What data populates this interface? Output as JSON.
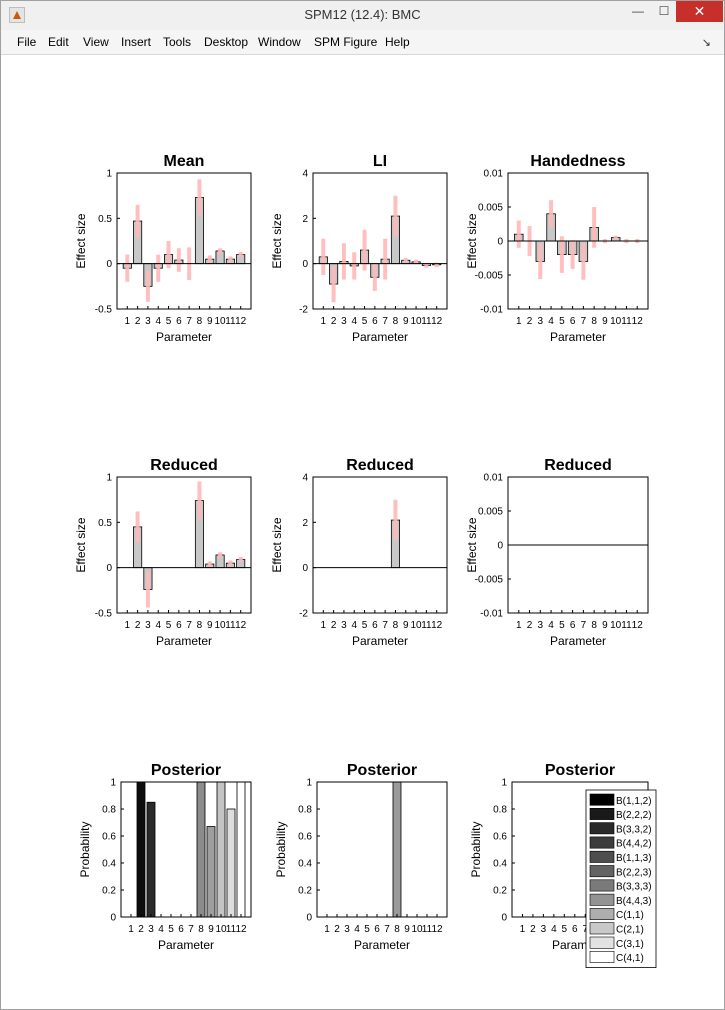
{
  "window": {
    "title": "SPM12 (12.4): BMC",
    "minimize_glyph": "—",
    "maximize_glyph": "☐",
    "close_glyph": "✕",
    "icon": "matlab-figure-icon"
  },
  "menu": {
    "items": [
      "File",
      "Edit",
      "View",
      "Insert",
      "Tools",
      "Desktop",
      "Window",
      "SPM Figure",
      "Help"
    ],
    "dock_glyph": "↘"
  },
  "colors": {
    "bar": "#c8c8c8",
    "error": "#ffb8b8",
    "axis": "#000000"
  },
  "chart_data": [
    {
      "type": "bar",
      "title": "Mean",
      "xlabel": "Parameter",
      "ylabel": "Effect size",
      "categories": [
        "1",
        "2",
        "3",
        "4",
        "5",
        "6",
        "7",
        "8",
        "9",
        "10",
        "11",
        "12"
      ],
      "ylim": [
        -0.5,
        1
      ],
      "yticks": [
        -0.5,
        0,
        0.5,
        1
      ],
      "ytick_labels": [
        "-0.5",
        "0",
        "0.5",
        "1"
      ],
      "values": [
        -0.05,
        0.47,
        -0.25,
        -0.05,
        0.1,
        0.04,
        0.0,
        0.73,
        0.05,
        0.14,
        0.05,
        0.1
      ],
      "errors": [
        0.15,
        0.18,
        0.17,
        0.15,
        0.15,
        0.13,
        0.18,
        0.2,
        0.04,
        0.03,
        0.03,
        0.03
      ]
    },
    {
      "type": "bar",
      "title": "LI",
      "xlabel": "Parameter",
      "ylabel": "Effect size",
      "categories": [
        "1",
        "2",
        "3",
        "4",
        "5",
        "6",
        "7",
        "8",
        "9",
        "10",
        "11",
        "12"
      ],
      "ylim": [
        -2,
        4
      ],
      "yticks": [
        -2,
        0,
        2,
        4
      ],
      "ytick_labels": [
        "-2",
        "0",
        "2",
        "4"
      ],
      "values": [
        0.3,
        -0.9,
        0.1,
        -0.1,
        0.6,
        -0.6,
        0.2,
        2.1,
        0.15,
        0.08,
        -0.08,
        -0.05
      ],
      "errors": [
        0.8,
        0.8,
        0.8,
        0.6,
        0.9,
        0.6,
        0.9,
        0.9,
        0.1,
        0.1,
        0.1,
        0.1
      ]
    },
    {
      "type": "bar",
      "title": "Handedness",
      "xlabel": "Parameter",
      "ylabel": "Effect size",
      "categories": [
        "1",
        "2",
        "3",
        "4",
        "5",
        "6",
        "7",
        "8",
        "9",
        "10",
        "11",
        "12"
      ],
      "ylim": [
        -0.01,
        0.01
      ],
      "yticks": [
        -0.01,
        -0.005,
        0,
        0.005,
        0.01
      ],
      "ytick_labels": [
        "-0.01",
        "-0.005",
        "0",
        "0.005",
        "0.01"
      ],
      "values": [
        0.001,
        0.0,
        -0.003,
        0.004,
        -0.002,
        -0.002,
        -0.003,
        0.002,
        0.0,
        0.0005,
        0.0,
        0.0
      ],
      "errors": [
        0.002,
        0.0022,
        0.0026,
        0.002,
        0.0027,
        0.0021,
        0.0027,
        0.003,
        0.0003,
        0.0003,
        0.0003,
        0.0003
      ]
    },
    {
      "type": "bar",
      "title": "Reduced",
      "xlabel": "Parameter",
      "ylabel": "Effect size",
      "categories": [
        "1",
        "2",
        "3",
        "4",
        "5",
        "6",
        "7",
        "8",
        "9",
        "10",
        "11",
        "12"
      ],
      "ylim": [
        -0.5,
        1
      ],
      "yticks": [
        -0.5,
        0,
        0.5,
        1
      ],
      "ytick_labels": [
        "-0.5",
        "0",
        "0.5",
        "1"
      ],
      "values": [
        0,
        0.45,
        -0.24,
        0,
        0,
        0,
        0,
        0.74,
        0.04,
        0.14,
        0.05,
        0.09
      ],
      "errors": [
        0,
        0.17,
        0.2,
        0,
        0,
        0,
        0,
        0.21,
        0.03,
        0.03,
        0.03,
        0.03
      ]
    },
    {
      "type": "bar",
      "title": "Reduced",
      "xlabel": "Parameter",
      "ylabel": "Effect size",
      "categories": [
        "1",
        "2",
        "3",
        "4",
        "5",
        "6",
        "7",
        "8",
        "9",
        "10",
        "11",
        "12"
      ],
      "ylim": [
        -2,
        4
      ],
      "yticks": [
        -2,
        0,
        2,
        4
      ],
      "ytick_labels": [
        "-2",
        "0",
        "2",
        "4"
      ],
      "values": [
        0,
        0,
        0,
        0,
        0,
        0,
        0,
        2.1,
        0,
        0,
        0,
        0
      ],
      "errors": [
        0,
        0,
        0,
        0,
        0,
        0,
        0,
        0.9,
        0,
        0,
        0,
        0
      ]
    },
    {
      "type": "bar",
      "title": "Reduced",
      "xlabel": "Parameter",
      "ylabel": "Effect size",
      "categories": [
        "1",
        "2",
        "3",
        "4",
        "5",
        "6",
        "7",
        "8",
        "9",
        "10",
        "11",
        "12"
      ],
      "ylim": [
        -0.01,
        0.01
      ],
      "yticks": [
        -0.01,
        -0.005,
        0,
        0.005,
        0.01
      ],
      "ytick_labels": [
        "-0.01",
        "-0.005",
        "0",
        "0.005",
        "0.01"
      ],
      "values": [
        0,
        0,
        0,
        0,
        0,
        0,
        0,
        0,
        0,
        0,
        0,
        0
      ],
      "errors": [
        0,
        0,
        0,
        0,
        0,
        0,
        0,
        0,
        0,
        0,
        0,
        0
      ]
    },
    {
      "type": "bar",
      "title": "Posterior",
      "xlabel": "Parameter",
      "ylabel": "Probability",
      "categories": [
        "1",
        "2",
        "3",
        "4",
        "5",
        "6",
        "7",
        "8",
        "9",
        "10",
        "11",
        "12"
      ],
      "ylim": [
        0,
        1
      ],
      "yticks": [
        0,
        0.2,
        0.4,
        0.6,
        0.8,
        1
      ],
      "ytick_labels": [
        "0",
        "0.2",
        "0.4",
        "0.6",
        "0.8",
        "1"
      ],
      "values": [
        0,
        1,
        0.85,
        0,
        0,
        0,
        0,
        1,
        0.67,
        1,
        0.8,
        1
      ],
      "bar_colors": [
        "#000000",
        "#0d0d0d",
        "#2a2a2a",
        "#3a3a3a",
        "#4a4a4a",
        "#5a5a5a",
        "#6e6e6e",
        "#8c8c8c",
        "#9e9e9e",
        "#c4c4c4",
        "#dedede",
        "#ffffff"
      ]
    },
    {
      "type": "bar",
      "title": "Posterior",
      "xlabel": "Parameter",
      "ylabel": "Probability",
      "categories": [
        "1",
        "2",
        "3",
        "4",
        "5",
        "6",
        "7",
        "8",
        "9",
        "10",
        "11",
        "12"
      ],
      "ylim": [
        0,
        1
      ],
      "yticks": [
        0,
        0.2,
        0.4,
        0.6,
        0.8,
        1
      ],
      "ytick_labels": [
        "0",
        "0.2",
        "0.4",
        "0.6",
        "0.8",
        "1"
      ],
      "values": [
        0,
        0,
        0,
        0,
        0,
        0,
        0,
        1,
        0,
        0,
        0,
        0
      ],
      "bar_colors": [
        "#000000",
        "#0d0d0d",
        "#2a2a2a",
        "#3a3a3a",
        "#4a4a4a",
        "#5a5a5a",
        "#6e6e6e",
        "#9a9a9a",
        "#9e9e9e",
        "#c4c4c4",
        "#dedede",
        "#ffffff"
      ]
    },
    {
      "type": "bar",
      "title": "Posterior",
      "xlabel": "Parameter",
      "ylabel": "Probability",
      "categories": [
        "1",
        "2",
        "3",
        "4",
        "5",
        "6",
        "7",
        "8",
        "9",
        "10",
        "11",
        "12"
      ],
      "ylim": [
        0,
        1
      ],
      "yticks": [
        0,
        0.2,
        0.4,
        0.6,
        0.8,
        1
      ],
      "ytick_labels": [
        "0",
        "0.2",
        "0.4",
        "0.6",
        "0.8",
        "1"
      ],
      "values": [
        0,
        0,
        0,
        0,
        0,
        0,
        0,
        0,
        0,
        0,
        0,
        0
      ],
      "legend": {
        "placement": "right",
        "entries": [
          {
            "label": "B(1,1,2)",
            "color": "#000000"
          },
          {
            "label": "B(2,2,2)",
            "color": "#1a1a1a"
          },
          {
            "label": "B(3,3,2)",
            "color": "#2a2a2a"
          },
          {
            "label": "B(4,4,2)",
            "color": "#3c3c3c"
          },
          {
            "label": "B(1,1,3)",
            "color": "#4e4e4e"
          },
          {
            "label": "B(2,2,3)",
            "color": "#636363"
          },
          {
            "label": "B(3,3,3)",
            "color": "#7a7a7a"
          },
          {
            "label": "B(4,4,3)",
            "color": "#939393"
          },
          {
            "label": "C(1,1)",
            "color": "#adadad"
          },
          {
            "label": "C(2,1)",
            "color": "#c8c8c8"
          },
          {
            "label": "C(3,1)",
            "color": "#e2e2e2"
          },
          {
            "label": "C(4,1)",
            "color": "#ffffff"
          }
        ]
      }
    }
  ]
}
